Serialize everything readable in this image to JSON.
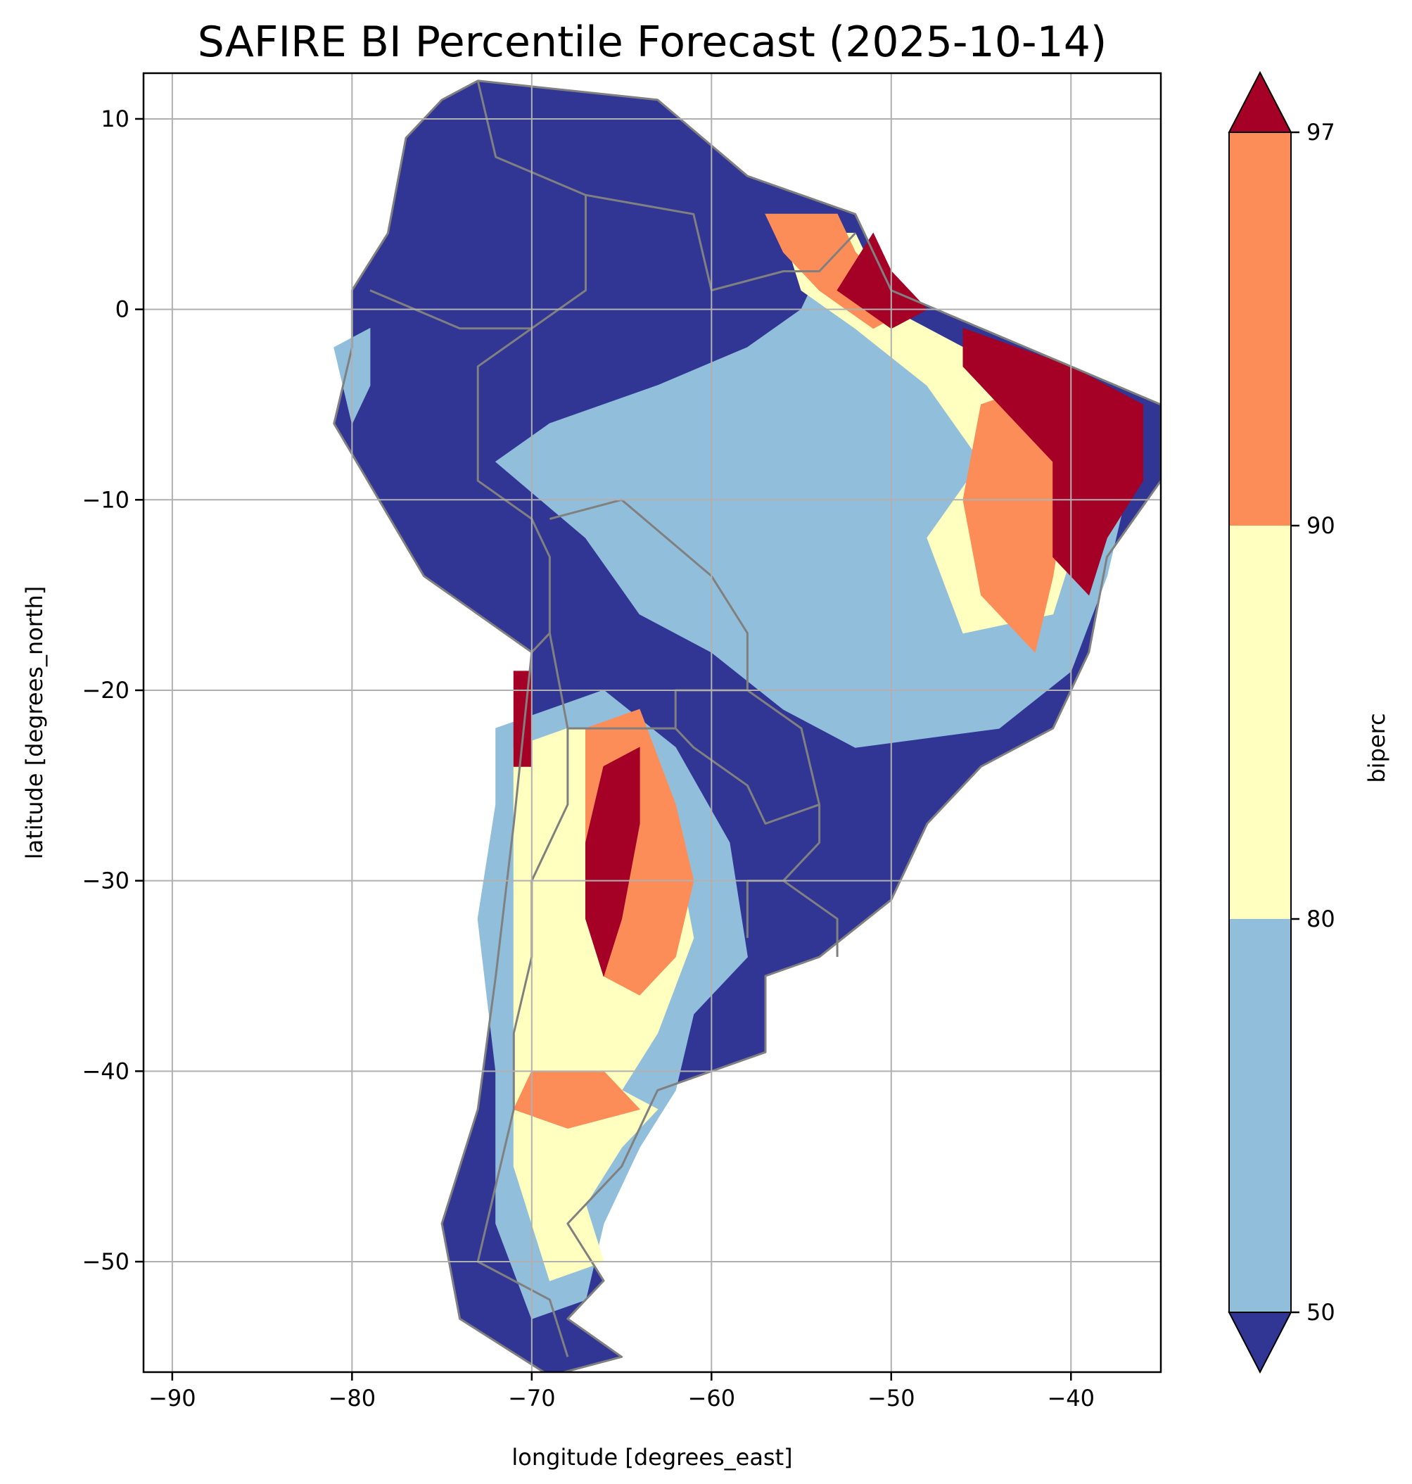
{
  "figure": {
    "title": "SAFIRE BI Percentile Forecast (2025-10-14)"
  },
  "colors": {
    "below_50": "#313695",
    "50_80": "#91bfdb",
    "80_90": "#ffffbf",
    "90_97": "#fc8d59",
    "above_97": "#a50026",
    "border": "#808080",
    "grid": "#b0b0b0"
  },
  "chart_data": {
    "type": "heatmap",
    "title": "SAFIRE BI Percentile Forecast (2025-10-14)",
    "xlabel": "longitude [degrees_east]",
    "ylabel": "latitude [degrees_north]",
    "xlim": [
      -91.6,
      -35.0
    ],
    "ylim": [
      -55.8,
      12.4
    ],
    "xticks": [
      -90,
      -80,
      -70,
      -60,
      -50,
      -40
    ],
    "xtick_labels": [
      "−90",
      "−80",
      "−70",
      "−60",
      "−50",
      "−40"
    ],
    "yticks": [
      10,
      0,
      -10,
      -20,
      -30,
      -40,
      -50
    ],
    "ytick_labels": [
      "10",
      "0",
      "−10",
      "−20",
      "−30",
      "−40",
      "−50"
    ],
    "grid": true,
    "variable": "biperc",
    "colorbar": {
      "label": "biperc",
      "boundaries": [
        50,
        80,
        90,
        97
      ],
      "tick_labels": [
        "50",
        "80",
        "90",
        "97"
      ],
      "extend": "both",
      "colors": [
        "#313695",
        "#91bfdb",
        "#ffffbf",
        "#fc8d59",
        "#a50026"
      ]
    },
    "regions": [
      {
        "category": "below_50",
        "color": "#313695",
        "polygon": [
          [
            -73,
            12
          ],
          [
            -63,
            11
          ],
          [
            -58,
            7
          ],
          [
            -52,
            5
          ],
          [
            -50,
            1
          ],
          [
            -45,
            -1
          ],
          [
            -40,
            -3
          ],
          [
            -35,
            -5
          ],
          [
            -35,
            -9
          ],
          [
            -38,
            -13
          ],
          [
            -39,
            -18
          ],
          [
            -41,
            -22
          ],
          [
            -45,
            -24
          ],
          [
            -48,
            -27
          ],
          [
            -50,
            -31
          ],
          [
            -54,
            -34
          ],
          [
            -57,
            -35
          ],
          [
            -57,
            -39
          ],
          [
            -63,
            -41
          ],
          [
            -65,
            -45
          ],
          [
            -68,
            -48
          ],
          [
            -66,
            -51
          ],
          [
            -68,
            -53
          ],
          [
            -65,
            -55
          ],
          [
            -69,
            -56
          ],
          [
            -74,
            -53
          ],
          [
            -75,
            -48
          ],
          [
            -73,
            -42
          ],
          [
            -72,
            -35
          ],
          [
            -71,
            -27
          ],
          [
            -70,
            -18
          ],
          [
            -76,
            -14
          ],
          [
            -81,
            -6
          ],
          [
            -80,
            -2
          ],
          [
            -80,
            1
          ],
          [
            -78,
            4
          ],
          [
            -77,
            9
          ],
          [
            -75,
            11
          ]
        ]
      },
      {
        "category": "50_80",
        "color": "#91bfdb",
        "polygon": [
          [
            -54,
            2
          ],
          [
            -50,
            0
          ],
          [
            -46,
            -2
          ],
          [
            -42,
            -4
          ],
          [
            -38,
            -6
          ],
          [
            -37,
            -10
          ],
          [
            -38,
            -14
          ],
          [
            -40,
            -19
          ],
          [
            -44,
            -22
          ],
          [
            -52,
            -23
          ],
          [
            -56,
            -21
          ],
          [
            -60,
            -18
          ],
          [
            -64,
            -16
          ],
          [
            -67,
            -12
          ],
          [
            -72,
            -8
          ],
          [
            -69,
            -6
          ],
          [
            -63,
            -4
          ],
          [
            -58,
            -2
          ],
          [
            -55,
            0
          ]
        ]
      },
      {
        "category": "50_80",
        "color": "#91bfdb",
        "polygon": [
          [
            -72,
            -22
          ],
          [
            -66,
            -20
          ],
          [
            -62,
            -23
          ],
          [
            -59,
            -28
          ],
          [
            -58,
            -34
          ],
          [
            -61,
            -37
          ],
          [
            -62,
            -41
          ],
          [
            -64,
            -44
          ],
          [
            -66,
            -48
          ],
          [
            -67,
            -52
          ],
          [
            -70,
            -53
          ],
          [
            -72,
            -48
          ],
          [
            -72,
            -40
          ],
          [
            -73,
            -32
          ],
          [
            -72,
            -26
          ]
        ]
      },
      {
        "category": "50_80",
        "color": "#91bfdb",
        "polygon": [
          [
            -81,
            -2
          ],
          [
            -79,
            -1
          ],
          [
            -79,
            -4
          ],
          [
            -80,
            -6
          ]
        ]
      },
      {
        "category": "80_90",
        "color": "#ffffbf",
        "polygon": [
          [
            -71,
            -23
          ],
          [
            -68,
            -22
          ],
          [
            -64,
            -22
          ],
          [
            -62,
            -28
          ],
          [
            -61,
            -33
          ],
          [
            -63,
            -38
          ],
          [
            -65,
            -41
          ],
          [
            -63,
            -42
          ],
          [
            -65,
            -44
          ],
          [
            -67,
            -47
          ],
          [
            -66,
            -50
          ],
          [
            -69,
            -51
          ],
          [
            -71,
            -45
          ],
          [
            -71,
            -38
          ],
          [
            -71,
            -30
          ]
        ]
      },
      {
        "category": "80_90",
        "color": "#ffffbf",
        "polygon": [
          [
            -56,
            4
          ],
          [
            -52,
            4
          ],
          [
            -50,
            0
          ],
          [
            -46,
            -2
          ],
          [
            -42,
            -3
          ],
          [
            -38,
            -5
          ],
          [
            -39,
            -10
          ],
          [
            -41,
            -16
          ],
          [
            -46,
            -17
          ],
          [
            -48,
            -12
          ],
          [
            -45,
            -8
          ],
          [
            -48,
            -4
          ],
          [
            -52,
            -1
          ],
          [
            -55,
            1
          ]
        ]
      },
      {
        "category": "90_97",
        "color": "#fc8d59",
        "polygon": [
          [
            -67,
            -22
          ],
          [
            -64,
            -21
          ],
          [
            -62,
            -26
          ],
          [
            -61,
            -30
          ],
          [
            -62,
            -34
          ],
          [
            -64,
            -36
          ],
          [
            -66,
            -35
          ],
          [
            -67,
            -30
          ],
          [
            -67,
            -26
          ]
        ]
      },
      {
        "category": "90_97",
        "color": "#fc8d59",
        "polygon": [
          [
            -70,
            -40
          ],
          [
            -66,
            -40
          ],
          [
            -64,
            -42
          ],
          [
            -68,
            -43
          ],
          [
            -71,
            -42
          ]
        ]
      },
      {
        "category": "90_97",
        "color": "#fc8d59",
        "polygon": [
          [
            -57,
            5
          ],
          [
            -53,
            5
          ],
          [
            -52,
            3
          ],
          [
            -49,
            0
          ],
          [
            -51,
            -1
          ],
          [
            -54,
            1
          ],
          [
            -56,
            3
          ]
        ]
      },
      {
        "category": "90_97",
        "color": "#fc8d59",
        "polygon": [
          [
            -45,
            -5
          ],
          [
            -42,
            -4
          ],
          [
            -40,
            -8
          ],
          [
            -41,
            -14
          ],
          [
            -42,
            -18
          ],
          [
            -45,
            -15
          ],
          [
            -46,
            -10
          ]
        ]
      },
      {
        "category": "above_97",
        "color": "#a50026",
        "polygon": [
          [
            -46,
            -1
          ],
          [
            -43,
            -2
          ],
          [
            -40,
            -3
          ],
          [
            -36,
            -5
          ],
          [
            -36,
            -9
          ],
          [
            -38,
            -12
          ],
          [
            -39,
            -15
          ],
          [
            -41,
            -13
          ],
          [
            -41,
            -8
          ],
          [
            -43,
            -6
          ],
          [
            -46,
            -3
          ]
        ]
      },
      {
        "category": "above_97",
        "color": "#a50026",
        "polygon": [
          [
            -53,
            1
          ],
          [
            -51,
            4
          ],
          [
            -50,
            2
          ],
          [
            -48,
            0
          ],
          [
            -50,
            -1
          ]
        ]
      },
      {
        "category": "above_97",
        "color": "#a50026",
        "polygon": [
          [
            -66,
            -24
          ],
          [
            -64,
            -23
          ],
          [
            -64,
            -27
          ],
          [
            -65,
            -32
          ],
          [
            -66,
            -35
          ],
          [
            -67,
            -32
          ],
          [
            -67,
            -28
          ]
        ]
      },
      {
        "category": "above_97",
        "color": "#a50026",
        "polygon": [
          [
            -71,
            -19
          ],
          [
            -70,
            -19
          ],
          [
            -70,
            -24
          ],
          [
            -71,
            -24
          ]
        ]
      }
    ],
    "borders": [
      [
        [
          -73,
          12
        ],
        [
          -72,
          8
        ],
        [
          -67,
          6
        ],
        [
          -67,
          1
        ],
        [
          -70,
          -1
        ],
        [
          -74,
          -1
        ],
        [
          -79,
          1
        ]
      ],
      [
        [
          -67,
          6
        ],
        [
          -61,
          5
        ],
        [
          -60,
          1
        ],
        [
          -56,
          2
        ],
        [
          -54,
          2
        ],
        [
          -52,
          4
        ]
      ],
      [
        [
          -70,
          -1
        ],
        [
          -73,
          -3
        ],
        [
          -73,
          -9
        ],
        [
          -70,
          -11
        ],
        [
          -69,
          -13
        ],
        [
          -69,
          -17
        ],
        [
          -70,
          -18
        ]
      ],
      [
        [
          -69,
          -11
        ],
        [
          -65,
          -10
        ],
        [
          -60,
          -14
        ],
        [
          -58,
          -17
        ],
        [
          -58,
          -20
        ],
        [
          -62,
          -20
        ],
        [
          -62,
          -22
        ],
        [
          -65,
          -22
        ],
        [
          -68,
          -22
        ],
        [
          -69,
          -17
        ]
      ],
      [
        [
          -58,
          -20
        ],
        [
          -55,
          -22
        ],
        [
          -54,
          -26
        ],
        [
          -57,
          -27
        ],
        [
          -58,
          -25
        ],
        [
          -61,
          -23
        ],
        [
          -62,
          -22
        ]
      ],
      [
        [
          -54,
          -26
        ],
        [
          -54,
          -28
        ],
        [
          -56,
          -30
        ],
        [
          -58,
          -30
        ],
        [
          -58,
          -33
        ]
      ],
      [
        [
          -56,
          -30
        ],
        [
          -53,
          -32
        ],
        [
          -53,
          -34
        ]
      ],
      [
        [
          -68,
          -22
        ],
        [
          -68,
          -26
        ],
        [
          -70,
          -30
        ],
        [
          -70,
          -34
        ],
        [
          -71,
          -38
        ],
        [
          -71,
          -42
        ],
        [
          -72,
          -46
        ],
        [
          -73,
          -50
        ],
        [
          -69,
          -52
        ],
        [
          -68,
          -55
        ]
      ]
    ]
  }
}
